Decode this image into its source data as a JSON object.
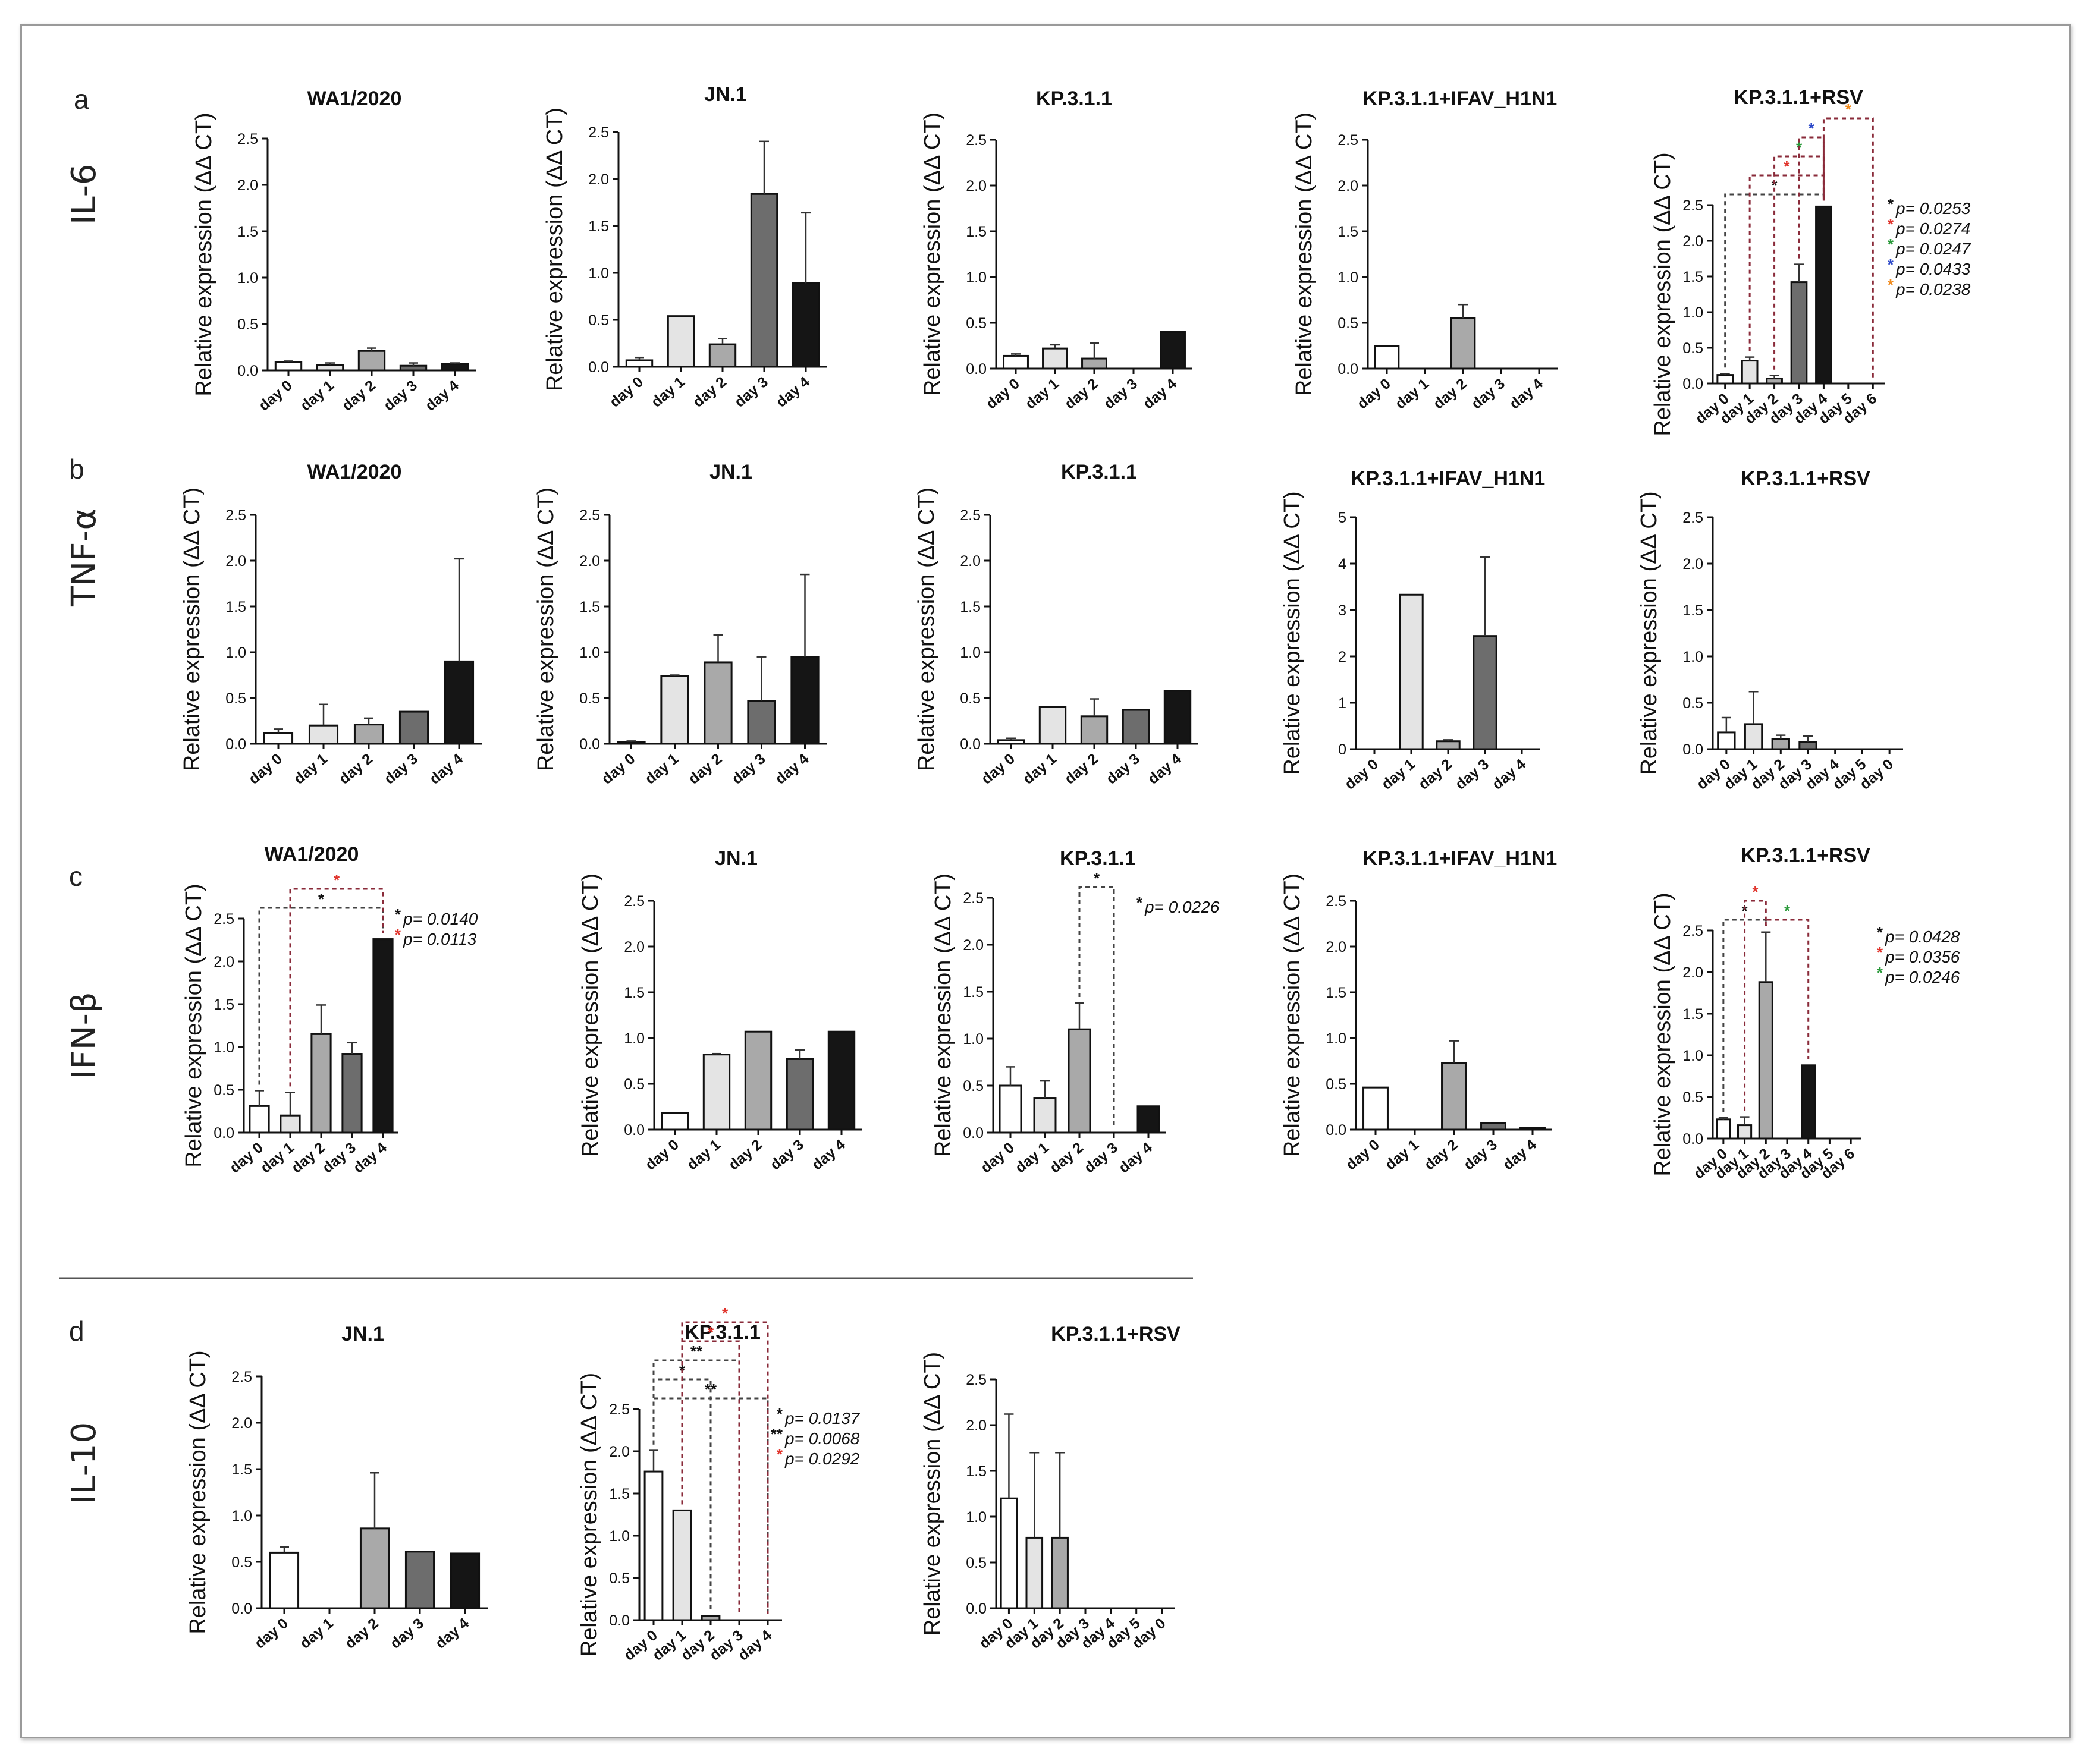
{
  "figure": {
    "divider_color": "#555555",
    "rows": [
      {
        "letter": "a",
        "gene": "IL-6"
      },
      {
        "letter": "b",
        "gene": "TNF-α"
      },
      {
        "letter": "c",
        "gene": "IFN-β"
      },
      {
        "letter": "d",
        "gene": "IL-10"
      }
    ]
  },
  "colors": {
    "fills": [
      "#ffffff",
      "#e4e4e4",
      "#a9a9a9",
      "#6d6d6d",
      "#151515",
      "#ffffff",
      "#ffffff"
    ],
    "bracket": "#444444",
    "star_colors": {
      "k": "#111111",
      "r": "#e0342c",
      "g": "#2a9a3a",
      "b": "#2a46c8",
      "o": "#f08a1c"
    }
  },
  "chart_data": [
    {
      "id": "a1",
      "type": "bar",
      "title": "WA1/2020",
      "ylabel": "Relative expression (ΔΔ CT)",
      "ylim": [
        0,
        2.5
      ],
      "yticks": [
        "0.0",
        "0.5",
        "1.0",
        "1.5",
        "2.0",
        "2.5"
      ],
      "categories": [
        "day 0",
        "day 1",
        "day 2",
        "day 3",
        "day 4"
      ],
      "values": [
        0.09,
        0.06,
        0.21,
        0.05,
        0.07
      ],
      "errors": [
        0.01,
        0.02,
        0.03,
        0.03,
        0.01
      ],
      "pvalues": []
    },
    {
      "id": "a2",
      "type": "bar",
      "title": "JN.1",
      "ylabel": "Relative expression (ΔΔ CT)",
      "ylim": [
        0,
        2.5
      ],
      "yticks": [
        "0.0",
        "0.5",
        "1.0",
        "1.5",
        "2.0",
        "2.5"
      ],
      "categories": [
        "day 0",
        "day 1",
        "day 2",
        "day 3",
        "day 4"
      ],
      "values": [
        0.07,
        0.54,
        0.24,
        1.84,
        0.89
      ],
      "errors": [
        0.03,
        0,
        0.06,
        0.56,
        0.75
      ],
      "pvalues": []
    },
    {
      "id": "a3",
      "type": "bar",
      "title": "KP.3.1.1",
      "ylabel": "Relative expression (ΔΔ CT)",
      "ylim": [
        0,
        2.5
      ],
      "yticks": [
        "0.0",
        "0.5",
        "1.0",
        "1.5",
        "2.0",
        "2.5"
      ],
      "categories": [
        "day 0",
        "day 1",
        "day 2",
        "day 3",
        "day 4"
      ],
      "values": [
        0.14,
        0.22,
        0.11,
        0,
        0.4
      ],
      "errors": [
        0.02,
        0.04,
        0.17,
        0,
        0
      ],
      "pvalues": []
    },
    {
      "id": "a4",
      "type": "bar",
      "title": "KP.3.1.1+IFAV_H1N1",
      "ylabel": "Relative expression (ΔΔ CT)",
      "ylim": [
        0,
        2.5
      ],
      "yticks": [
        "0.0",
        "0.5",
        "1.0",
        "1.5",
        "2.0",
        "2.5"
      ],
      "categories": [
        "day 0",
        "day 1",
        "day 2",
        "day 3",
        "day 4"
      ],
      "values": [
        0.25,
        0,
        0.55,
        0,
        0
      ],
      "errors": [
        0,
        0,
        0.15,
        0,
        0
      ],
      "pvalues": []
    },
    {
      "id": "a5",
      "type": "bar",
      "title": "KP.3.1.1+RSV",
      "ylabel": "Relative expression (ΔΔ CT)",
      "ylim": [
        0,
        2.5
      ],
      "yticks": [
        "0.0",
        "0.5",
        "1.0",
        "1.5",
        "2.0",
        "2.5"
      ],
      "categories": [
        "day 0",
        "day 1",
        "day 2",
        "day 3",
        "day 4",
        "day 5",
        "day 6"
      ],
      "values": [
        0.12,
        0.32,
        0.07,
        1.42,
        2.48,
        0,
        0
      ],
      "errors": [
        0.02,
        0.05,
        0.04,
        0.25,
        0,
        0,
        0
      ],
      "pvalues": [
        {
          "star": "k",
          "text": "p= 0.0253"
        },
        {
          "star": "r",
          "text": "p= 0.0274"
        },
        {
          "star": "g",
          "text": "p= 0.0247"
        },
        {
          "star": "b",
          "text": "p= 0.0433"
        },
        {
          "star": "o",
          "text": "p= 0.0238"
        }
      ]
    },
    {
      "id": "b1",
      "type": "bar",
      "title": "WA1/2020",
      "ylabel": "Relative expression (ΔΔ CT)",
      "ylim": [
        0,
        2.5
      ],
      "yticks": [
        "0.0",
        "0.5",
        "1.0",
        "1.5",
        "2.0",
        "2.5"
      ],
      "categories": [
        "day 0",
        "day 1",
        "day 2",
        "day 3",
        "day 4"
      ],
      "values": [
        0.12,
        0.2,
        0.21,
        0.35,
        0.9
      ],
      "errors": [
        0.04,
        0.23,
        0.07,
        0,
        1.12
      ],
      "pvalues": []
    },
    {
      "id": "b2",
      "type": "bar",
      "title": "JN.1",
      "ylabel": "Relative expression (ΔΔ CT)",
      "ylim": [
        0,
        2.5
      ],
      "yticks": [
        "0.0",
        "0.5",
        "1.0",
        "1.5",
        "2.0",
        "2.5"
      ],
      "categories": [
        "day 0",
        "day 1",
        "day 2",
        "day 3",
        "day 4"
      ],
      "values": [
        0.02,
        0.74,
        0.89,
        0.47,
        0.95
      ],
      "errors": [
        0.01,
        0.01,
        0.3,
        0.48,
        0.9
      ],
      "pvalues": []
    },
    {
      "id": "b3",
      "type": "bar",
      "title": "KP.3.1.1",
      "ylabel": "Relative expression (ΔΔ CT)",
      "ylim": [
        0,
        2.5
      ],
      "yticks": [
        "0.0",
        "0.5",
        "1.0",
        "1.5",
        "2.0",
        "2.5"
      ],
      "categories": [
        "day 0",
        "day 1",
        "day 2",
        "day 3",
        "day 4"
      ],
      "values": [
        0.04,
        0.4,
        0.3,
        0.37,
        0.58
      ],
      "errors": [
        0.02,
        0,
        0.19,
        0,
        0
      ],
      "pvalues": []
    },
    {
      "id": "b4",
      "type": "bar",
      "title": "KP.3.1.1+IFAV_H1N1",
      "ylabel": "Relative expression (ΔΔ CT)",
      "ylim": [
        0,
        5
      ],
      "yticks": [
        "0",
        "1",
        "2",
        "3",
        "4",
        "5"
      ],
      "categories": [
        "day 0",
        "day 1",
        "day 2",
        "day 3",
        "day 4"
      ],
      "values": [
        0,
        3.33,
        0.17,
        2.44,
        0
      ],
      "errors": [
        0,
        0,
        0.03,
        1.7,
        0
      ],
      "pvalues": []
    },
    {
      "id": "b5",
      "type": "bar",
      "title": "KP.3.1.1+RSV",
      "ylabel": "Relative expression (ΔΔ CT)",
      "ylim": [
        0,
        2.5
      ],
      "yticks": [
        "0.0",
        "0.5",
        "1.0",
        "1.5",
        "2.0",
        "2.5"
      ],
      "categories": [
        "day 0",
        "day 1",
        "day 2",
        "day 3",
        "day 4",
        "day 5",
        "day 0"
      ],
      "values": [
        0.18,
        0.27,
        0.11,
        0.08,
        0,
        0,
        0
      ],
      "errors": [
        0.16,
        0.35,
        0.04,
        0.06,
        0,
        0,
        0
      ],
      "pvalues": []
    },
    {
      "id": "c1",
      "type": "bar",
      "title": "WA1/2020",
      "ylabel": "Relative expression (ΔΔ CT)",
      "ylim": [
        0,
        2.5
      ],
      "yticks": [
        "0.0",
        "0.5",
        "1.0",
        "1.5",
        "2.0",
        "2.5"
      ],
      "categories": [
        "day 0",
        "day 1",
        "day 2",
        "day 3",
        "day 4"
      ],
      "values": [
        0.31,
        0.2,
        1.15,
        0.92,
        2.26
      ],
      "errors": [
        0.18,
        0.27,
        0.34,
        0.13,
        0
      ],
      "pvalues": [
        {
          "star": "k",
          "text": "p= 0.0140"
        },
        {
          "star": "r",
          "text": "p= 0.0113"
        }
      ]
    },
    {
      "id": "c2",
      "type": "bar",
      "title": "JN.1",
      "ylabel": "Relative expression (ΔΔ CT)",
      "ylim": [
        0,
        2.5
      ],
      "yticks": [
        "0.0",
        "0.5",
        "1.0",
        "1.5",
        "2.0",
        "2.5"
      ],
      "categories": [
        "day 0",
        "day 1",
        "day 2",
        "day 3",
        "day 4"
      ],
      "values": [
        0.18,
        0.82,
        1.07,
        0.77,
        1.07
      ],
      "errors": [
        0,
        0.01,
        0,
        0.1,
        0
      ],
      "pvalues": []
    },
    {
      "id": "c3",
      "type": "bar",
      "title": "KP.3.1.1",
      "ylabel": "Relative expression (ΔΔ CT)",
      "ylim": [
        0,
        2.5
      ],
      "yticks": [
        "0.0",
        "0.5",
        "1.0",
        "1.5",
        "2.0",
        "2.5"
      ],
      "categories": [
        "day 0",
        "day 1",
        "day 2",
        "day 3",
        "day 4"
      ],
      "values": [
        0.5,
        0.37,
        1.1,
        0,
        0.28
      ],
      "errors": [
        0.2,
        0.18,
        0.28,
        0,
        0
      ],
      "pvalues": [
        {
          "star": "k",
          "text": "p= 0.0226"
        }
      ]
    },
    {
      "id": "c4",
      "type": "bar",
      "title": "KP.3.1.1+IFAV_H1N1",
      "ylabel": "Relative expression (ΔΔ CT)",
      "ylim": [
        0,
        2.5
      ],
      "yticks": [
        "0.0",
        "0.5",
        "1.0",
        "1.5",
        "2.0",
        "2.5"
      ],
      "categories": [
        "day 0",
        "day 1",
        "day 2",
        "day 3",
        "day 4"
      ],
      "values": [
        0.46,
        0,
        0.73,
        0.07,
        0.02
      ],
      "errors": [
        0,
        0,
        0.24,
        0,
        0
      ],
      "pvalues": []
    },
    {
      "id": "c5",
      "type": "bar",
      "title": "KP.3.1.1+RSV",
      "ylabel": "Relative expression (ΔΔ CT)",
      "ylim": [
        0,
        2.5
      ],
      "yticks": [
        "0.0",
        "0.5",
        "1.0",
        "1.5",
        "2.0",
        "2.5"
      ],
      "categories": [
        "day 0",
        "day 1",
        "day 2",
        "day 3",
        "day 4",
        "day 5",
        "day 6"
      ],
      "values": [
        0.23,
        0.16,
        1.88,
        0,
        0.88,
        0,
        0
      ],
      "errors": [
        0.02,
        0.1,
        0.6,
        0,
        0,
        0,
        0
      ],
      "pvalues": [
        {
          "star": "k",
          "text": "p= 0.0428"
        },
        {
          "star": "r",
          "text": "p= 0.0356"
        },
        {
          "star": "g",
          "text": "p= 0.0246"
        }
      ]
    },
    {
      "id": "d1",
      "type": "bar",
      "title": "JN.1",
      "ylabel": "Relative expression (ΔΔ CT)",
      "ylim": [
        0,
        2.5
      ],
      "yticks": [
        "0.0",
        "0.5",
        "1.0",
        "1.5",
        "2.0",
        "2.5"
      ],
      "categories": [
        "day 0",
        "day 1",
        "day 2",
        "day 3",
        "day 4"
      ],
      "values": [
        0.6,
        0,
        0.86,
        0.61,
        0.59
      ],
      "errors": [
        0.06,
        0,
        0.6,
        0,
        0
      ],
      "pvalues": []
    },
    {
      "id": "d2",
      "type": "bar",
      "title": "KP.3.1.1",
      "ylabel": "Relative expression (ΔΔ CT)",
      "ylim": [
        0,
        2.5
      ],
      "yticks": [
        "0.0",
        "0.5",
        "1.0",
        "1.5",
        "2.0",
        "2.5"
      ],
      "categories": [
        "day 0",
        "day 1",
        "day 2",
        "day 3",
        "day 4"
      ],
      "values": [
        1.76,
        1.3,
        0.05,
        0,
        0
      ],
      "errors": [
        0.25,
        0,
        0,
        0,
        0
      ],
      "pvalues": [
        {
          "star": "k",
          "text": "p= 0.0137"
        },
        {
          "star": "kk",
          "text": "p= 0.0068"
        },
        {
          "star": "r",
          "text": "p= 0.0292"
        }
      ]
    },
    {
      "id": "d3",
      "type": "bar",
      "title": "KP.3.1.1+RSV",
      "ylabel": "Relative expression (ΔΔ CT)",
      "ylim": [
        0,
        2.5
      ],
      "yticks": [
        "0.0",
        "0.5",
        "1.0",
        "1.5",
        "2.0",
        "2.5"
      ],
      "categories": [
        "day 0",
        "day 1",
        "day 2",
        "day 3",
        "day 4",
        "day 5",
        "day 0"
      ],
      "values": [
        1.2,
        0.77,
        0.77,
        0,
        0,
        0,
        0
      ],
      "errors": [
        0.92,
        0.93,
        0.93,
        0,
        0,
        0,
        0
      ],
      "pvalues": []
    }
  ]
}
